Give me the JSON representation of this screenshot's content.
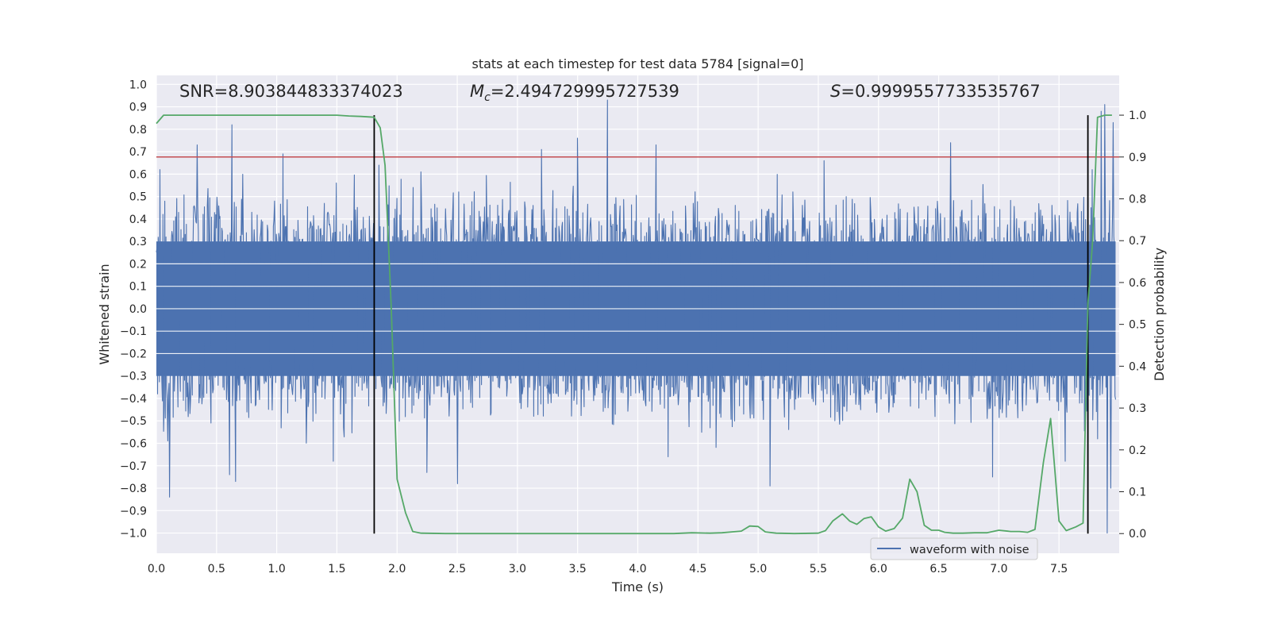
{
  "chart_data": {
    "type": "line",
    "title": "stats at each timestep for test data 5784 [signal=0]",
    "xlabel": "Time (s)",
    "ylabel": "Whitened strain",
    "y2label": "Detection probability",
    "xlim": [
      0.0,
      8.0
    ],
    "ylim": [
      -1.09,
      1.04
    ],
    "y2lim": [
      -0.047,
      1.095
    ],
    "xticks": [
      "0.0",
      "0.5",
      "1.0",
      "1.5",
      "2.0",
      "2.5",
      "3.0",
      "3.5",
      "4.0",
      "4.5",
      "5.0",
      "5.5",
      "6.0",
      "6.5",
      "7.0",
      "7.5"
    ],
    "yticks": [
      "1.0",
      "0.9",
      "0.8",
      "0.7",
      "0.6",
      "0.5",
      "0.4",
      "0.3",
      "0.2",
      "0.1",
      "0.0",
      "−0.1",
      "−0.2",
      "−0.3",
      "−0.4",
      "−0.5",
      "−0.6",
      "−0.7",
      "−0.8",
      "−0.9",
      "−1.0"
    ],
    "y2ticks": [
      "1.0",
      "0.9",
      "0.8",
      "0.7",
      "0.6",
      "0.5",
      "0.4",
      "0.3",
      "0.2",
      "0.1",
      "0.0"
    ],
    "annotations": {
      "snr": "SNR=8.903844833374023",
      "mc_symbol": "M",
      "mc_sub": "c",
      "mc_value": "=2.494729995727539",
      "s_symbol": "S",
      "s_value": "=0.9999557733535767"
    },
    "threshold": 0.9,
    "vlines": [
      1.81,
      7.74
    ],
    "legend": {
      "label": "waveform with noise",
      "placement": "lower-right"
    },
    "colors": {
      "waveform": "#4c72b0",
      "probability": "#55a868",
      "threshold": "#c44e52",
      "vline": "#000000",
      "background": "#eaeaf2",
      "grid": "#ffffff"
    },
    "waveform": {
      "samples": 1600,
      "core_amplitude": 0.3,
      "peaks": [
        {
          "t": 0.03,
          "v": 0.62
        },
        {
          "t": 0.11,
          "v": -0.84
        },
        {
          "t": 0.34,
          "v": 0.73
        },
        {
          "t": 0.61,
          "v": -0.74
        },
        {
          "t": 0.63,
          "v": 0.82
        },
        {
          "t": 0.66,
          "v": -0.77
        },
        {
          "t": 1.05,
          "v": 0.69
        },
        {
          "t": 1.47,
          "v": -0.68
        },
        {
          "t": 1.85,
          "v": 0.64
        },
        {
          "t": 2.2,
          "v": 0.61
        },
        {
          "t": 2.25,
          "v": -0.73
        },
        {
          "t": 2.5,
          "v": -0.78
        },
        {
          "t": 3.2,
          "v": 0.71
        },
        {
          "t": 3.5,
          "v": 0.76
        },
        {
          "t": 3.75,
          "v": 0.93
        },
        {
          "t": 4.15,
          "v": 0.73
        },
        {
          "t": 4.25,
          "v": -0.66
        },
        {
          "t": 5.1,
          "v": -0.79
        },
        {
          "t": 5.55,
          "v": 0.66
        },
        {
          "t": 6.6,
          "v": 0.74
        },
        {
          "t": 6.95,
          "v": -0.75
        },
        {
          "t": 7.55,
          "v": -0.68
        },
        {
          "t": 7.82,
          "v": -0.58
        },
        {
          "t": 7.85,
          "v": 0.88
        },
        {
          "t": 7.88,
          "v": 0.91
        },
        {
          "t": 7.9,
          "v": -1.0
        },
        {
          "t": 7.95,
          "v": 0.83
        },
        {
          "t": 7.93,
          "v": -0.8
        }
      ]
    },
    "probability": {
      "t": [
        0.0,
        0.06,
        0.2,
        0.5,
        0.8,
        1.1,
        1.4,
        1.5,
        1.6,
        1.7,
        1.81,
        1.86,
        1.9,
        1.95,
        2.0,
        2.07,
        2.13,
        2.2,
        2.4,
        2.8,
        3.2,
        3.6,
        4.0,
        4.3,
        4.45,
        4.6,
        4.7,
        4.86,
        4.93,
        5.0,
        5.06,
        5.15,
        5.3,
        5.5,
        5.56,
        5.62,
        5.7,
        5.76,
        5.82,
        5.88,
        5.94,
        6.0,
        6.06,
        6.13,
        6.2,
        6.26,
        6.32,
        6.38,
        6.44,
        6.5,
        6.55,
        6.62,
        6.7,
        6.8,
        6.9,
        7.0,
        7.1,
        7.17,
        7.24,
        7.3,
        7.37,
        7.43,
        7.5,
        7.56,
        7.64,
        7.7,
        7.74,
        7.78,
        7.82,
        7.88,
        7.94
      ],
      "p": [
        0.98,
        1.0,
        1.0,
        1.0,
        1.0,
        1.0,
        1.0,
        1.0,
        0.998,
        0.997,
        0.995,
        0.97,
        0.88,
        0.55,
        0.13,
        0.05,
        0.005,
        0.001,
        0.0,
        0.0,
        0.0,
        0.0,
        0.0,
        0.0,
        0.002,
        0.001,
        0.002,
        0.006,
        0.018,
        0.017,
        0.004,
        0.001,
        0.0,
        0.001,
        0.007,
        0.03,
        0.047,
        0.03,
        0.022,
        0.036,
        0.04,
        0.016,
        0.006,
        0.012,
        0.037,
        0.13,
        0.1,
        0.02,
        0.008,
        0.008,
        0.003,
        0.001,
        0.001,
        0.002,
        0.002,
        0.008,
        0.005,
        0.005,
        0.003,
        0.01,
        0.17,
        0.275,
        0.03,
        0.007,
        0.016,
        0.025,
        0.55,
        0.7,
        0.995,
        1.0,
        1.0
      ]
    }
  }
}
